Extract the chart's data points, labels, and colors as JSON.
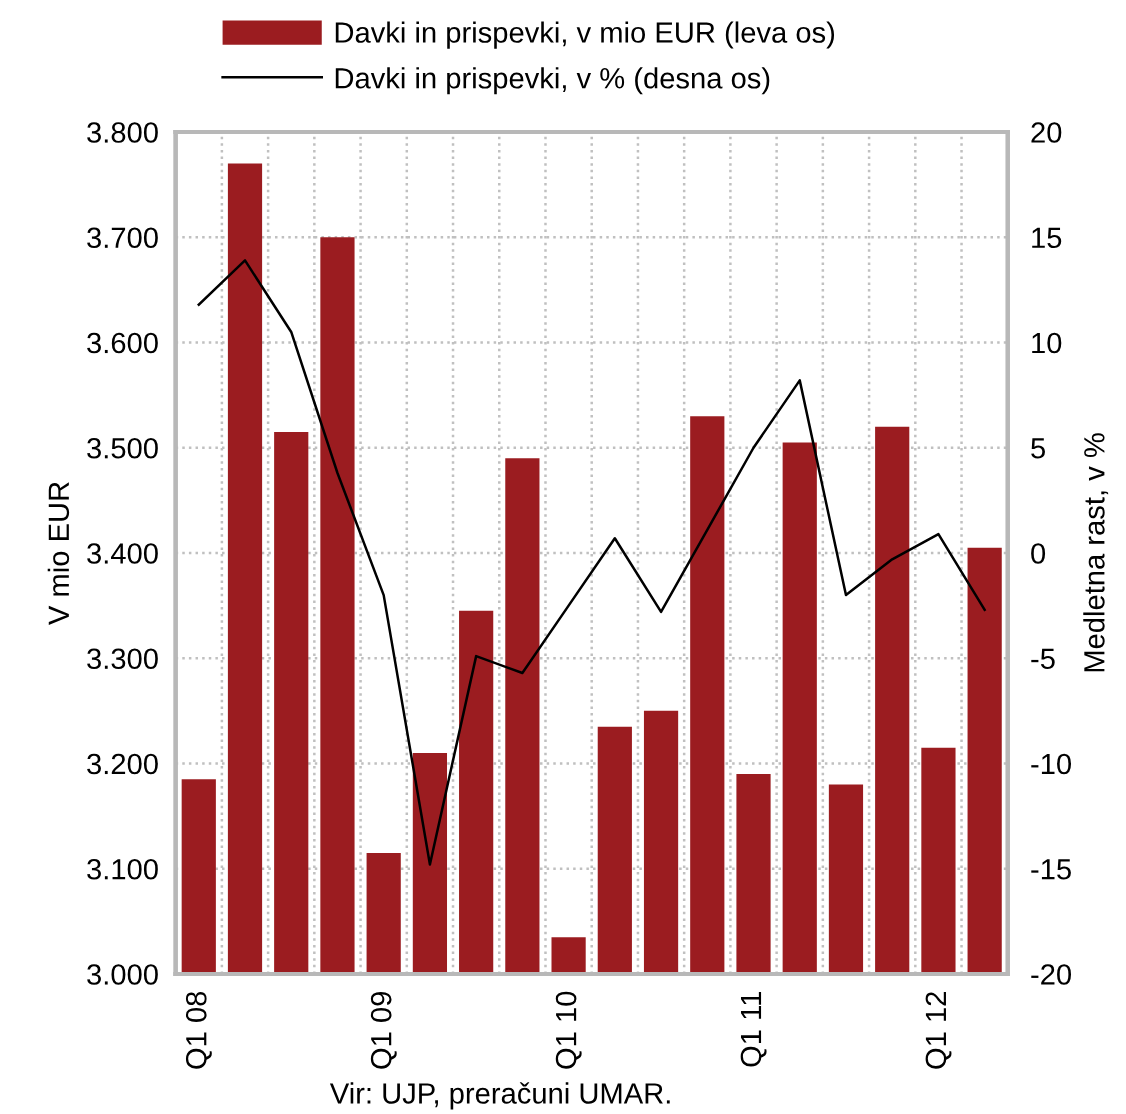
{
  "chart_data": {
    "type": "bar",
    "categories": [
      "Q1 08",
      null,
      null,
      null,
      "Q1 09",
      null,
      null,
      null,
      "Q1 10",
      null,
      null,
      null,
      "Q1 11",
      null,
      null,
      null,
      "Q1 12",
      null
    ],
    "series": [
      {
        "name": "Davki in prispevki, v mio EUR (leva os)",
        "color": "#9b1c20",
        "values": [
          3185,
          3770,
          3515,
          3700,
          3115,
          3210,
          3345,
          3490,
          3035,
          3235,
          3250,
          3530,
          3190,
          3505,
          3180,
          3520,
          3215,
          3405
        ]
      },
      {
        "name": "Davki in prispevki, v % (desna os)",
        "type": "line",
        "axis": "y2",
        "color": "#000000",
        "values": [
          11.8,
          13.9,
          10.5,
          3.8,
          -2.0,
          -14.8,
          -4.9,
          -5.7,
          -2.5,
          0.7,
          -2.8,
          1.1,
          5.0,
          8.2,
          -2.0,
          -0.3,
          0.9,
          -2.7
        ]
      }
    ],
    "ylim": [
      3000,
      3800
    ],
    "yticks": [
      {
        "value": 3000,
        "label": "3.000"
      },
      {
        "value": 3100,
        "label": "3.100"
      },
      {
        "value": 3200,
        "label": "3.200"
      },
      {
        "value": 3300,
        "label": "3.300"
      },
      {
        "value": 3400,
        "label": "3.400"
      },
      {
        "value": 3500,
        "label": "3.500"
      },
      {
        "value": 3600,
        "label": "3.600"
      },
      {
        "value": 3700,
        "label": "3.700"
      },
      {
        "value": 3800,
        "label": "3.800"
      }
    ],
    "y2lim": [
      -20,
      20
    ],
    "y2ticks": [
      -20,
      -15,
      -10,
      -5,
      0,
      5,
      10,
      15,
      20
    ],
    "ylabel": "V mio EUR",
    "y2label": "Medletna rast, v %",
    "annotations": [
      "Vir: UJP, preračuni UMAR."
    ],
    "grid": true,
    "legend": "top",
    "line_style": "solid",
    "marker": "none"
  }
}
